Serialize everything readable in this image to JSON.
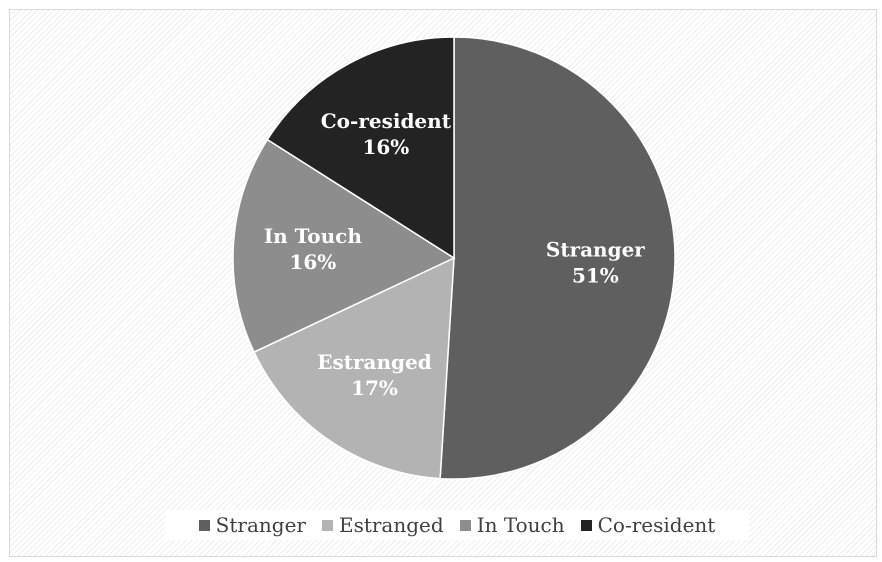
{
  "chart_data": {
    "type": "pie",
    "title": "",
    "categories": [
      "Stranger",
      "Estranged",
      "In Touch",
      "Co-resident"
    ],
    "values": [
      51,
      17,
      16,
      16
    ],
    "value_labels": [
      "51%",
      "17%",
      "16%",
      "16%"
    ],
    "colors": [
      "#5f5f5f",
      "#b3b3b3",
      "#8d8d8d",
      "#232323"
    ],
    "legend": {
      "position": "bottom",
      "entries": [
        "Stranger",
        "Estranged",
        "In Touch",
        "Co-resident"
      ]
    }
  }
}
